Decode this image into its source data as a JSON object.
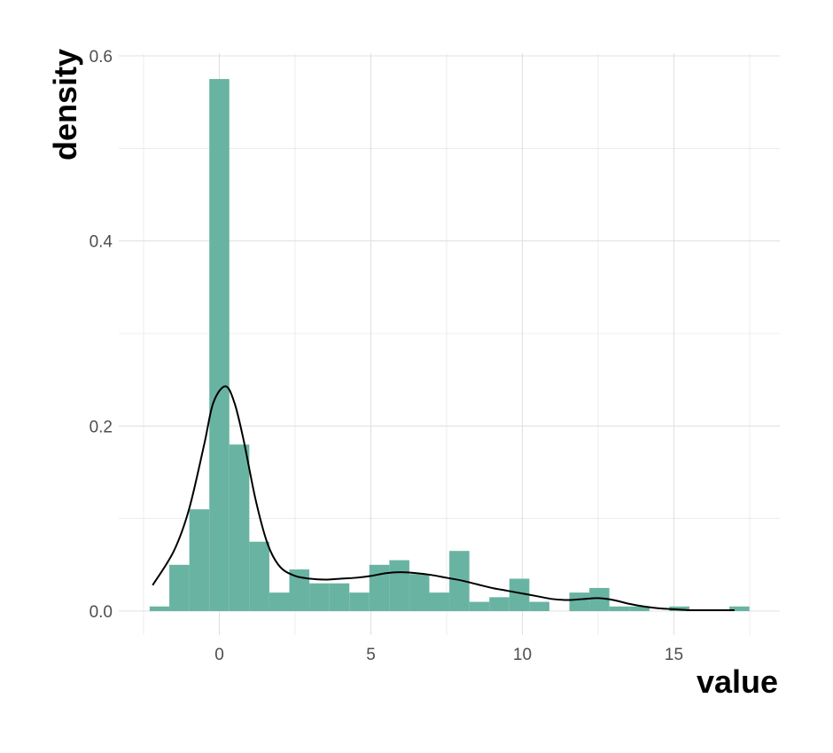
{
  "chart_data": {
    "type": "bar",
    "subtype": "histogram-with-density",
    "title": "",
    "xlabel": "value",
    "ylabel": "density",
    "xlim": [
      -3,
      18
    ],
    "ylim": [
      0,
      0.6
    ],
    "x_ticks": [
      0,
      5,
      10,
      15
    ],
    "x_tick_labels": [
      "0",
      "5",
      "10",
      "15"
    ],
    "y_ticks": [
      0,
      0.2,
      0.4,
      0.6
    ],
    "y_tick_labels": [
      "0.0",
      "0.2",
      "0.4",
      "0.6"
    ],
    "grid": true,
    "legend": "none",
    "colors": {
      "bar": "#69b3a2",
      "line": "#000000",
      "grid": "#e0e0e0"
    },
    "bins": [
      {
        "x0": -2.3,
        "x1": -1.65,
        "density": 0.005
      },
      {
        "x0": -1.65,
        "x1": -0.99,
        "density": 0.05
      },
      {
        "x0": -0.99,
        "x1": -0.33,
        "density": 0.11
      },
      {
        "x0": -0.33,
        "x1": 0.33,
        "density": 0.575
      },
      {
        "x0": 0.33,
        "x1": 0.99,
        "density": 0.18
      },
      {
        "x0": 0.99,
        "x1": 1.65,
        "density": 0.075
      },
      {
        "x0": 1.65,
        "x1": 2.31,
        "density": 0.02
      },
      {
        "x0": 2.31,
        "x1": 2.97,
        "density": 0.045
      },
      {
        "x0": 2.97,
        "x1": 3.63,
        "density": 0.03
      },
      {
        "x0": 3.63,
        "x1": 4.29,
        "density": 0.03
      },
      {
        "x0": 4.29,
        "x1": 4.95,
        "density": 0.02
      },
      {
        "x0": 4.95,
        "x1": 5.61,
        "density": 0.05
      },
      {
        "x0": 5.61,
        "x1": 6.27,
        "density": 0.055
      },
      {
        "x0": 6.27,
        "x1": 6.93,
        "density": 0.04
      },
      {
        "x0": 6.93,
        "x1": 7.59,
        "density": 0.02
      },
      {
        "x0": 7.59,
        "x1": 8.25,
        "density": 0.065
      },
      {
        "x0": 8.25,
        "x1": 8.91,
        "density": 0.01
      },
      {
        "x0": 8.91,
        "x1": 9.57,
        "density": 0.015
      },
      {
        "x0": 9.57,
        "x1": 10.23,
        "density": 0.035
      },
      {
        "x0": 10.23,
        "x1": 10.89,
        "density": 0.01
      },
      {
        "x0": 10.89,
        "x1": 11.55,
        "density": 0.0
      },
      {
        "x0": 11.55,
        "x1": 12.21,
        "density": 0.02
      },
      {
        "x0": 12.21,
        "x1": 12.87,
        "density": 0.025
      },
      {
        "x0": 12.87,
        "x1": 13.53,
        "density": 0.005
      },
      {
        "x0": 13.53,
        "x1": 14.19,
        "density": 0.005
      },
      {
        "x0": 14.19,
        "x1": 14.85,
        "density": 0.0
      },
      {
        "x0": 14.85,
        "x1": 15.51,
        "density": 0.005
      },
      {
        "x0": 15.51,
        "x1": 16.17,
        "density": 0.0
      },
      {
        "x0": 16.17,
        "x1": 16.83,
        "density": 0.0
      },
      {
        "x0": 16.83,
        "x1": 17.49,
        "density": 0.005
      }
    ],
    "density_curve": {
      "x": [
        -2.2,
        -1.5,
        -1.0,
        -0.5,
        -0.2,
        0.2,
        0.5,
        0.8,
        1.2,
        1.6,
        2.0,
        2.5,
        3.0,
        3.5,
        4.0,
        4.5,
        5.0,
        5.5,
        6.0,
        6.5,
        7.0,
        7.5,
        8.0,
        8.5,
        9.0,
        9.5,
        10.0,
        10.5,
        11.0,
        11.5,
        12.0,
        12.5,
        13.0,
        13.5,
        14.0,
        14.5,
        15.0,
        15.5,
        16.0,
        16.5,
        17.0
      ],
      "y": [
        0.028,
        0.065,
        0.11,
        0.18,
        0.225,
        0.243,
        0.225,
        0.185,
        0.12,
        0.072,
        0.048,
        0.038,
        0.035,
        0.034,
        0.035,
        0.036,
        0.038,
        0.041,
        0.042,
        0.041,
        0.039,
        0.036,
        0.033,
        0.029,
        0.025,
        0.022,
        0.019,
        0.016,
        0.013,
        0.012,
        0.013,
        0.014,
        0.012,
        0.008,
        0.005,
        0.003,
        0.002,
        0.001,
        0.001,
        0.001,
        0.001
      ]
    }
  }
}
